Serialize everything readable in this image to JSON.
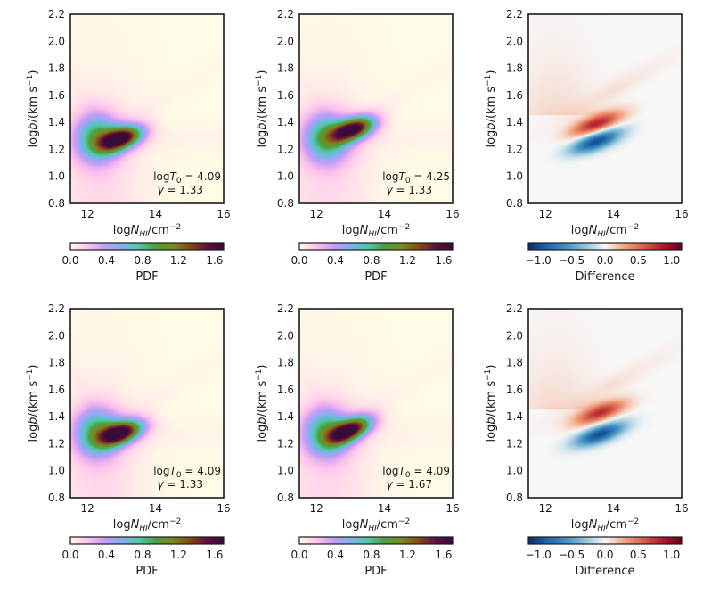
{
  "chart_data": [
    {
      "type": "heatmap",
      "kind": "pdf",
      "xlabel": "logN_HI/cm^-2",
      "ylabel": "logb/(km s^-1)",
      "xlim": [
        11.5,
        16
      ],
      "ylim": [
        0.8,
        2.2
      ],
      "xticks": [
        "12",
        "14",
        "16"
      ],
      "yticks": [
        "0.8",
        "1.0",
        "1.2",
        "1.4",
        "1.6",
        "1.8",
        "2.0",
        "2.2"
      ],
      "annotation": [
        "logT0 = 4.09",
        "γ = 1.33"
      ],
      "colorbar": {
        "label": "PDF",
        "ticks": [
          "0.0",
          "0.4",
          "0.8",
          "1.2",
          "1.6"
        ],
        "range": [
          0,
          1.7
        ]
      },
      "peak": {
        "x": 13.0,
        "y": 1.28,
        "value": 1.62
      }
    },
    {
      "type": "heatmap",
      "kind": "pdf",
      "xlabel": "logN_HI/cm^-2",
      "ylabel": "logb/(km s^-1)",
      "xlim": [
        11.5,
        16
      ],
      "ylim": [
        0.8,
        2.2
      ],
      "xticks": [
        "12",
        "14",
        "16"
      ],
      "yticks": [
        "0.8",
        "1.0",
        "1.2",
        "1.4",
        "1.6",
        "1.8",
        "2.0",
        "2.2"
      ],
      "annotation": [
        "logT0 = 4.25",
        "γ = 1.33"
      ],
      "colorbar": {
        "label": "PDF",
        "ticks": [
          "0.0",
          "0.4",
          "0.8",
          "1.2",
          "1.6"
        ],
        "range": [
          0,
          1.7
        ]
      },
      "peak": {
        "x": 13.1,
        "y": 1.35,
        "value": 1.6
      }
    },
    {
      "type": "heatmap",
      "kind": "diff",
      "xlabel": "logN_HI/cm^-2",
      "ylabel": "logb/(km s^-1)",
      "xlim": [
        11.5,
        16
      ],
      "ylim": [
        0.8,
        2.2
      ],
      "xticks": [
        "12",
        "14",
        "16"
      ],
      "yticks": [
        "0.8",
        "1.0",
        "1.2",
        "1.4",
        "1.6",
        "1.8",
        "2.0",
        "2.2"
      ],
      "annotation": [],
      "colorbar": {
        "label": "Difference",
        "ticks": [
          "−1.0",
          "−0.5",
          "0.0",
          "0.5",
          "1.0"
        ],
        "range": [
          -1.15,
          1.15
        ]
      },
      "positive_peak": {
        "x": 13.5,
        "y": 1.39,
        "value": 0.85
      },
      "negative_peak": {
        "x": 13.5,
        "y": 1.26,
        "value": -1.0
      }
    },
    {
      "type": "heatmap",
      "kind": "pdf",
      "xlabel": "logN_HI/cm^-2",
      "ylabel": "logb/(km s^-1)",
      "xlim": [
        11.5,
        16
      ],
      "ylim": [
        0.8,
        2.2
      ],
      "xticks": [
        "12",
        "14",
        "16"
      ],
      "yticks": [
        "0.8",
        "1.0",
        "1.2",
        "1.4",
        "1.6",
        "1.8",
        "2.0",
        "2.2"
      ],
      "annotation": [
        "logT0 = 4.09",
        "γ = 1.33"
      ],
      "colorbar": {
        "label": "PDF",
        "ticks": [
          "0.0",
          "0.4",
          "0.8",
          "1.2",
          "1.6"
        ],
        "range": [
          0,
          1.7
        ]
      },
      "peak": {
        "x": 13.0,
        "y": 1.28,
        "value": 1.62
      }
    },
    {
      "type": "heatmap",
      "kind": "pdf",
      "xlabel": "logN_HI/cm^-2",
      "ylabel": "logb/(km s^-1)",
      "xlim": [
        11.5,
        16
      ],
      "ylim": [
        0.8,
        2.2
      ],
      "xticks": [
        "12",
        "14",
        "16"
      ],
      "yticks": [
        "0.8",
        "1.0",
        "1.2",
        "1.4",
        "1.6",
        "1.8",
        "2.0",
        "2.2"
      ],
      "annotation": [
        "logT0 = 4.09",
        "γ = 1.67"
      ],
      "colorbar": {
        "label": "PDF",
        "ticks": [
          "0.0",
          "0.4",
          "0.8",
          "1.2",
          "1.6"
        ],
        "range": [
          0,
          1.7
        ]
      },
      "peak": {
        "x": 13.0,
        "y": 1.3,
        "value": 1.55
      }
    },
    {
      "type": "heatmap",
      "kind": "diff",
      "xlabel": "logN_HI/cm^-2",
      "ylabel": "logb/(km s^-1)",
      "xlim": [
        11.5,
        16
      ],
      "ylim": [
        0.8,
        2.2
      ],
      "xticks": [
        "12",
        "14",
        "16"
      ],
      "yticks": [
        "0.8",
        "1.0",
        "1.2",
        "1.4",
        "1.6",
        "1.8",
        "2.0",
        "2.2"
      ],
      "annotation": [],
      "colorbar": {
        "label": "Difference",
        "ticks": [
          "−1.0",
          "−0.5",
          "0.0",
          "0.5",
          "1.0"
        ],
        "range": [
          -1.15,
          1.15
        ]
      },
      "positive_peak": {
        "x": 13.6,
        "y": 1.43,
        "value": 0.8
      },
      "negative_peak": {
        "x": 13.6,
        "y": 1.27,
        "value": -1.0
      }
    }
  ],
  "colors": {
    "pdf_scale": [
      "#fffbe6",
      "#ffc4ec",
      "#c79cf5",
      "#7fb0f0",
      "#52c8a8",
      "#4aa040",
      "#7a8a20",
      "#8a4a10",
      "#5e1040",
      "#3a0a3a"
    ],
    "diff_scale": [
      "#08306b",
      "#2166ac",
      "#4393c3",
      "#92c5de",
      "#f7f7f7",
      "#f4a582",
      "#d6604d",
      "#b2182b",
      "#67001f"
    ],
    "frame": "#1a1a1a"
  }
}
